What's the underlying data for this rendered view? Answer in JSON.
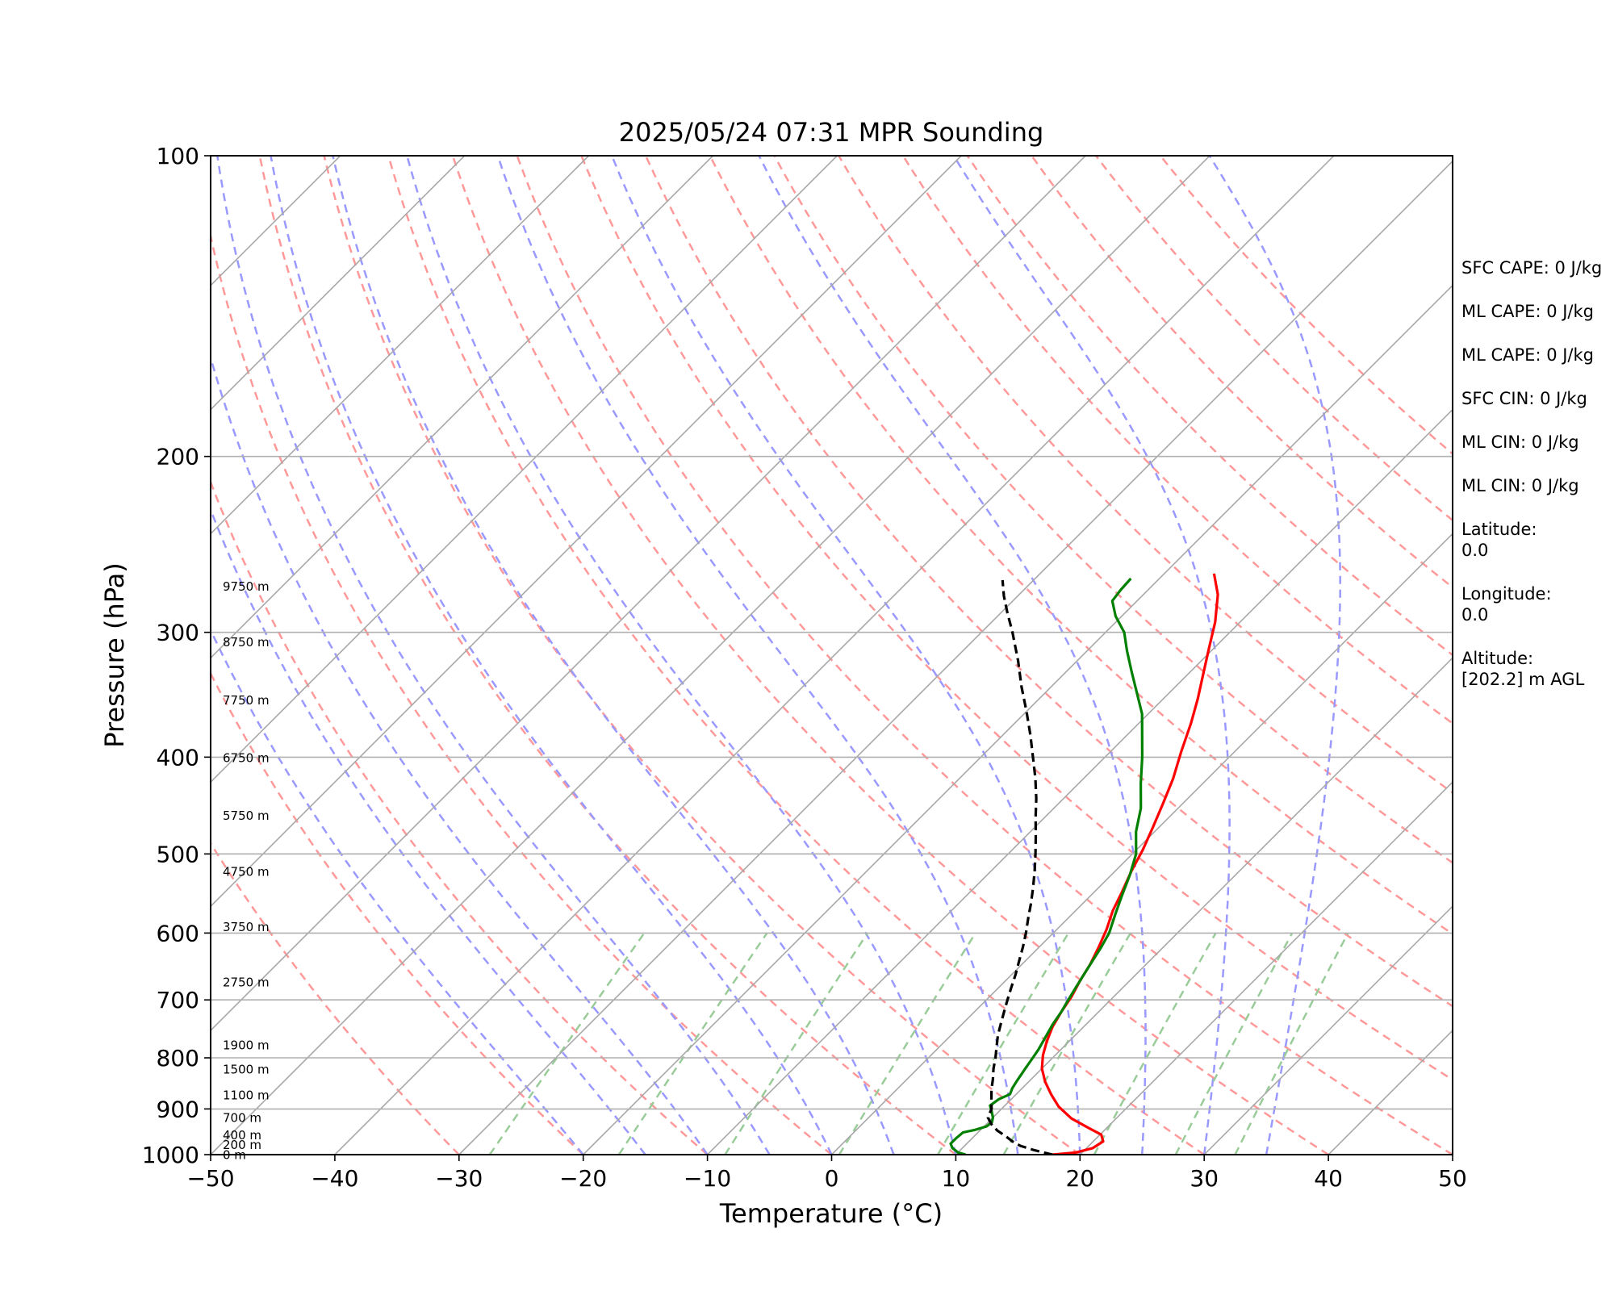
{
  "chart_data": {
    "type": "line",
    "title": "2025/05/24 07:31 MPR Sounding",
    "xlabel": "Temperature (°C)",
    "ylabel": "Pressure (hPa)",
    "xlim": [
      -50,
      50
    ],
    "ylim": [
      1000,
      100
    ],
    "y_scale": "log",
    "x_ticks": [
      "−50",
      "−40",
      "−30",
      "−20",
      "−10",
      "0",
      "10",
      "20",
      "30",
      "40",
      "50"
    ],
    "y_ticks": [
      "100",
      "200",
      "300",
      "400",
      "500",
      "600",
      "700",
      "800",
      "900",
      "1000"
    ],
    "grid": "horizontal at 100–1000 hPa",
    "series": [
      {
        "color": "#ff0000",
        "style": "solid",
        "points": [
          [
            17.8,
            1000
          ],
          [
            19.5,
            995
          ],
          [
            20.5,
            985
          ],
          [
            20.8,
            970
          ],
          [
            20.1,
            955
          ],
          [
            18.5,
            940
          ],
          [
            16.4,
            920
          ],
          [
            14.4,
            895
          ],
          [
            12.8,
            870
          ],
          [
            11.3,
            845
          ],
          [
            10.0,
            820
          ],
          [
            9.0,
            795
          ],
          [
            8.2,
            770
          ],
          [
            7.5,
            745
          ],
          [
            7.0,
            720
          ],
          [
            6.6,
            695
          ],
          [
            6.0,
            670
          ],
          [
            5.5,
            645
          ],
          [
            4.8,
            620
          ],
          [
            4.0,
            595
          ],
          [
            3.0,
            570
          ],
          [
            2.2,
            545
          ],
          [
            1.3,
            520
          ],
          [
            0.5,
            495
          ],
          [
            -0.5,
            470
          ],
          [
            -1.6,
            445
          ],
          [
            -2.8,
            420
          ],
          [
            -4.3,
            395
          ],
          [
            -5.8,
            370
          ],
          [
            -7.2,
            350
          ],
          [
            -8.8,
            330
          ],
          [
            -10.5,
            310
          ],
          [
            -12.0,
            293
          ],
          [
            -14.0,
            275
          ],
          [
            -16.0,
            262
          ]
        ]
      },
      {
        "color": "#008000",
        "style": "solid",
        "points": [
          [
            10.8,
            1000
          ],
          [
            10.0,
            995
          ],
          [
            9.2,
            985
          ],
          [
            8.7,
            975
          ],
          [
            8.7,
            963
          ],
          [
            8.8,
            950
          ],
          [
            9.5,
            945
          ],
          [
            10.2,
            937
          ],
          [
            10.3,
            928
          ],
          [
            10.0,
            918
          ],
          [
            9.4,
            905
          ],
          [
            8.8,
            893
          ],
          [
            9.0,
            880
          ],
          [
            9.5,
            870
          ],
          [
            9.2,
            858
          ],
          [
            9.0,
            845
          ],
          [
            8.8,
            830
          ],
          [
            8.6,
            815
          ],
          [
            8.4,
            800
          ],
          [
            8.2,
            785
          ],
          [
            7.9,
            770
          ],
          [
            7.6,
            755
          ],
          [
            7.3,
            740
          ],
          [
            7.0,
            720
          ],
          [
            6.6,
            700
          ],
          [
            6.2,
            680
          ],
          [
            5.8,
            660
          ],
          [
            5.4,
            640
          ],
          [
            5.0,
            620
          ],
          [
            4.5,
            600
          ],
          [
            3.5,
            575
          ],
          [
            2.5,
            550
          ],
          [
            1.5,
            525
          ],
          [
            0.3,
            500
          ],
          [
            -1.5,
            475
          ],
          [
            -3.0,
            450
          ],
          [
            -5.0,
            425
          ],
          [
            -7.0,
            400
          ],
          [
            -8.8,
            380
          ],
          [
            -10.5,
            362
          ],
          [
            -12.6,
            345
          ],
          [
            -14.8,
            328
          ],
          [
            -16.8,
            313
          ],
          [
            -18.5,
            300
          ],
          [
            -20.5,
            289
          ],
          [
            -22.0,
            279
          ],
          [
            -22.2,
            272
          ],
          [
            -22.3,
            265
          ]
        ]
      },
      {
        "color": "#000000",
        "style": "dashed",
        "points": [
          [
            17.8,
            1000
          ],
          [
            16.0,
            990
          ],
          [
            14.5,
            980
          ],
          [
            13.5,
            970
          ],
          [
            12.5,
            958
          ],
          [
            11.4,
            946
          ],
          [
            10.4,
            932
          ],
          [
            9.6,
            918
          ],
          [
            9.2,
            900
          ],
          [
            8.4,
            880
          ],
          [
            7.6,
            860
          ],
          [
            6.9,
            840
          ],
          [
            6.1,
            820
          ],
          [
            5.4,
            800
          ],
          [
            4.6,
            780
          ],
          [
            3.8,
            760
          ],
          [
            3.1,
            740
          ],
          [
            2.4,
            720
          ],
          [
            1.7,
            700
          ],
          [
            1.0,
            680
          ],
          [
            0.3,
            660
          ],
          [
            -0.5,
            640
          ],
          [
            -1.3,
            620
          ],
          [
            -2.2,
            600
          ],
          [
            -3.2,
            580
          ],
          [
            -4.2,
            560
          ],
          [
            -5.3,
            540
          ],
          [
            -6.5,
            520
          ],
          [
            -7.8,
            500
          ],
          [
            -9.2,
            480
          ],
          [
            -10.7,
            460
          ],
          [
            -12.2,
            440
          ],
          [
            -13.9,
            420
          ],
          [
            -15.8,
            400
          ],
          [
            -17.8,
            380
          ],
          [
            -20.0,
            360
          ],
          [
            -22.4,
            340
          ],
          [
            -24.8,
            320
          ],
          [
            -27.5,
            300
          ],
          [
            -29.6,
            286
          ],
          [
            -31.1,
            276
          ],
          [
            -32.5,
            266
          ]
        ]
      }
    ],
    "reference_lines": {
      "isotherms_c": [
        -120,
        -110,
        -100,
        -90,
        -80,
        -70,
        -60,
        -50,
        -40,
        -30,
        -20,
        -10,
        0,
        10,
        20,
        30,
        40,
        50
      ],
      "dry_adiabats_c": [
        -30,
        -20,
        -10,
        0,
        10,
        20,
        30,
        40,
        50,
        60,
        70,
        80,
        90,
        100,
        110,
        120,
        130,
        140,
        150
      ],
      "moist_adiabats_c": [
        -20,
        -15,
        -10,
        -5,
        0,
        5,
        10,
        15,
        20,
        25,
        30,
        35
      ],
      "mixing_ratios_gkg": [
        0.4,
        1,
        2,
        4,
        7,
        10,
        16,
        24,
        32
      ]
    },
    "height_labels": [
      {
        "text": "9750 m",
        "p": 270
      },
      {
        "text": "8750 m",
        "p": 307
      },
      {
        "text": "7750 m",
        "p": 351
      },
      {
        "text": "6750 m",
        "p": 401
      },
      {
        "text": "5750 m",
        "p": 458
      },
      {
        "text": "4750 m",
        "p": 521
      },
      {
        "text": "3750 m",
        "p": 592
      },
      {
        "text": "2750 m",
        "p": 672
      },
      {
        "text": "1900 m",
        "p": 777
      },
      {
        "text": "1500 m",
        "p": 822
      },
      {
        "text": "1100 m",
        "p": 872
      },
      {
        "text": "700 m",
        "p": 919
      },
      {
        "text": "400 m",
        "p": 956
      },
      {
        "text": "200 m",
        "p": 978
      },
      {
        "text": "0 m",
        "p": 1001
      }
    ],
    "annotations": [
      "SFC CAPE: 0 J/kg",
      "ML CAPE: 0 J/kg",
      "ML CAPE: 0 J/kg",
      "SFC CIN: 0 J/kg",
      "ML CIN: 0 J/kg",
      "ML CIN: 0 J/kg",
      "Latitude:\n0.0",
      "Longitude:\n0.0",
      "Altitude:\n[202.2] m AGL"
    ],
    "colors": {
      "isotherm": "#a8a8a8",
      "dry_adiabat": "#ff9999",
      "moist_adiabat": "#9999ff",
      "mixing_ratio": "#99cc99"
    }
  }
}
